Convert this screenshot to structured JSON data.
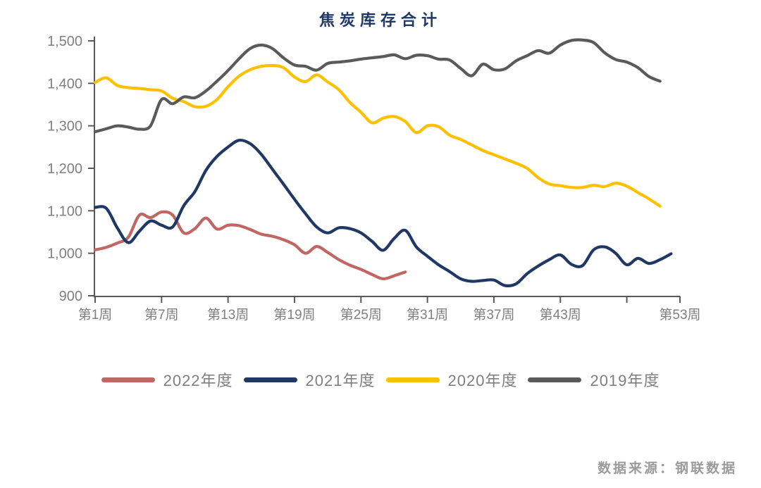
{
  "page": {
    "background": "#ffffff"
  },
  "title": {
    "text": "焦炭库存合计",
    "color": "#1f3864"
  },
  "source_note": {
    "text": "数据来源：钢联数据",
    "color": "#9b9b9b"
  },
  "chart_data": {
    "type": "line",
    "title": "焦炭库存合计",
    "x_unit": "week",
    "grid": false,
    "legend_position": "bottom",
    "axis_color": "#595959",
    "tick_label_color": "#7f7f7f",
    "y_axis": {
      "min": 900,
      "max": 1500,
      "ticks": [
        {
          "value": 900,
          "label": "900"
        },
        {
          "value": 1000,
          "label": "1,000"
        },
        {
          "value": 1100,
          "label": "1,100"
        },
        {
          "value": 1200,
          "label": "1,200"
        },
        {
          "value": 1300,
          "label": "1,300"
        },
        {
          "value": 1400,
          "label": "1,400"
        },
        {
          "value": 1500,
          "label": "1,500"
        }
      ]
    },
    "x_axis": {
      "min_week": 1,
      "max_week": 53,
      "ticks": [
        {
          "week": 1,
          "label": "第1周"
        },
        {
          "week": 7,
          "label": "第7周"
        },
        {
          "week": 13,
          "label": "第13周"
        },
        {
          "week": 19,
          "label": "第19周"
        },
        {
          "week": 25,
          "label": "第25周"
        },
        {
          "week": 31,
          "label": "第31周"
        },
        {
          "week": 37,
          "label": "第37周"
        },
        {
          "week": 43,
          "label": "第43周"
        },
        {
          "week": 49,
          "label": ""
        },
        {
          "week": 53,
          "label": "第53周",
          "at_axis_end": true
        }
      ]
    },
    "series": [
      {
        "name": "2022年度",
        "color": "#c06663",
        "start_week": 1,
        "values": [
          1008,
          1014,
          1024,
          1038,
          1090,
          1084,
          1097,
          1090,
          1048,
          1058,
          1083,
          1057,
          1066,
          1065,
          1056,
          1045,
          1040,
          1032,
          1020,
          1000,
          1016,
          1002,
          985,
          972,
          962,
          950,
          940,
          947,
          956
        ]
      },
      {
        "name": "2021年度",
        "color": "#1f3864",
        "start_week": 1,
        "values": [
          1108,
          1106,
          1060,
          1025,
          1052,
          1076,
          1066,
          1062,
          1112,
          1145,
          1195,
          1228,
          1250,
          1266,
          1258,
          1233,
          1198,
          1163,
          1127,
          1093,
          1062,
          1048,
          1060,
          1058,
          1048,
          1028,
          1007,
          1035,
          1054,
          1015,
          993,
          973,
          957,
          940,
          934,
          936,
          937,
          924,
          928,
          952,
          970,
          985,
          996,
          974,
          971,
          1008,
          1015,
          1000,
          973,
          988,
          976,
          985,
          999
        ]
      },
      {
        "name": "2020年度",
        "color": "#ffc000",
        "start_week": 1,
        "values": [
          1402,
          1413,
          1395,
          1390,
          1388,
          1385,
          1382,
          1365,
          1357,
          1345,
          1346,
          1362,
          1392,
          1417,
          1432,
          1440,
          1442,
          1437,
          1415,
          1404,
          1420,
          1403,
          1385,
          1355,
          1332,
          1307,
          1318,
          1322,
          1310,
          1284,
          1300,
          1298,
          1278,
          1268,
          1255,
          1242,
          1232,
          1222,
          1212,
          1200,
          1178,
          1163,
          1159,
          1155,
          1155,
          1160,
          1157,
          1165,
          1158,
          1143,
          1128,
          1111
        ]
      },
      {
        "name": "2019年度",
        "color": "#5a5a5a",
        "start_week": 1,
        "values": [
          1286,
          1293,
          1300,
          1297,
          1292,
          1300,
          1362,
          1352,
          1368,
          1366,
          1382,
          1405,
          1430,
          1458,
          1482,
          1490,
          1482,
          1460,
          1443,
          1440,
          1431,
          1447,
          1450,
          1453,
          1457,
          1460,
          1463,
          1467,
          1458,
          1466,
          1465,
          1457,
          1455,
          1435,
          1418,
          1445,
          1432,
          1434,
          1453,
          1465,
          1477,
          1471,
          1490,
          1501,
          1502,
          1496,
          1472,
          1456,
          1450,
          1437,
          1416,
          1405
        ]
      }
    ]
  }
}
